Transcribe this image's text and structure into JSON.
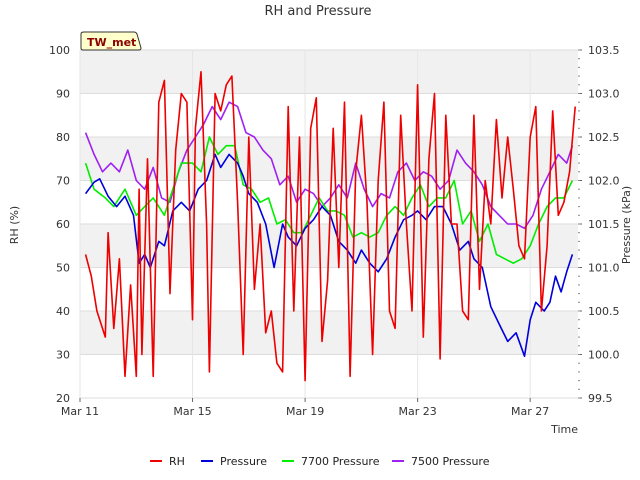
{
  "chart_data": {
    "type": "line",
    "title": "RH and Pressure",
    "badge": "TW_met",
    "xlabel": "Time",
    "ylabel_left": "RH (%)",
    "ylabel_right": "Pressure (kPa)",
    "x_tick_labels": [
      "Mar 11",
      "Mar 15",
      "Mar 19",
      "Mar 23",
      "Mar 27"
    ],
    "x_tick_days": [
      11,
      15,
      19,
      23,
      27
    ],
    "xlim_days": [
      11,
      28.7
    ],
    "ylim_left": [
      20,
      100
    ],
    "y_left_ticks": [
      20,
      30,
      40,
      50,
      60,
      70,
      80,
      90,
      100
    ],
    "ylim_right": [
      99.5,
      103.5
    ],
    "y_right_ticks": [
      99.5,
      100.0,
      100.5,
      101.0,
      101.5,
      102.0,
      102.5,
      103.0,
      103.5
    ],
    "grid": true,
    "legend_position": "bottom",
    "series": [
      {
        "name": "RH",
        "axis": "left",
        "color": "#ee0000",
        "x": [
          11.2,
          11.4,
          11.6,
          11.9,
          12.0,
          12.2,
          12.4,
          12.6,
          12.8,
          13.0,
          13.1,
          13.2,
          13.4,
          13.6,
          13.8,
          14.0,
          14.2,
          14.4,
          14.6,
          14.8,
          15.0,
          15.1,
          15.3,
          15.5,
          15.6,
          15.8,
          16.0,
          16.2,
          16.4,
          16.6,
          16.8,
          17.0,
          17.2,
          17.4,
          17.6,
          17.8,
          18.0,
          18.2,
          18.4,
          18.6,
          18.8,
          19.0,
          19.2,
          19.4,
          19.6,
          19.8,
          20.0,
          20.2,
          20.4,
          20.6,
          20.8,
          21.0,
          21.2,
          21.4,
          21.6,
          21.8,
          22.0,
          22.2,
          22.4,
          22.6,
          22.8,
          23.0,
          23.2,
          23.4,
          23.6,
          23.8,
          24.0,
          24.2,
          24.4,
          24.6,
          24.8,
          25.0,
          25.2,
          25.4,
          25.6,
          25.8,
          26.0,
          26.2,
          26.4,
          26.6,
          26.8,
          27.0,
          27.2,
          27.4,
          27.6,
          27.8,
          28.0,
          28.2,
          28.4,
          28.6
        ],
        "y": [
          53,
          48,
          40,
          34,
          58,
          36,
          52,
          25,
          46,
          25,
          68,
          30,
          75,
          25,
          88,
          93,
          44,
          77,
          90,
          88,
          38,
          82,
          95,
          60,
          26,
          90,
          86,
          92,
          94,
          65,
          30,
          80,
          45,
          60,
          35,
          40,
          28,
          26,
          87,
          40,
          80,
          24,
          82,
          89,
          33,
          47,
          82,
          50,
          88,
          25,
          72,
          85,
          65,
          30,
          70,
          88,
          40,
          36,
          85,
          60,
          40,
          92,
          34,
          75,
          90,
          29,
          85,
          60,
          60,
          40,
          38,
          85,
          45,
          70,
          60,
          84,
          66,
          80,
          68,
          55,
          52,
          80,
          87,
          40,
          55,
          86,
          62,
          65,
          72,
          87
        ]
      },
      {
        "name": "Pressure",
        "axis": "right",
        "color": "#0000dd",
        "x": [
          11.2,
          11.5,
          11.7,
          12.0,
          12.3,
          12.6,
          12.9,
          13.1,
          13.3,
          13.5,
          13.8,
          14.0,
          14.3,
          14.6,
          14.9,
          15.2,
          15.5,
          15.8,
          16.0,
          16.3,
          16.6,
          16.8,
          17.0,
          17.3,
          17.6,
          17.9,
          18.2,
          18.4,
          18.7,
          19.0,
          19.3,
          19.6,
          19.9,
          20.2,
          20.5,
          20.8,
          21.0,
          21.3,
          21.6,
          21.9,
          22.2,
          22.5,
          22.8,
          23.0,
          23.3,
          23.6,
          23.9,
          24.2,
          24.5,
          24.8,
          25.0,
          25.3,
          25.6,
          25.9,
          26.2,
          26.5,
          26.8,
          27.0,
          27.2,
          27.5,
          27.7,
          27.9,
          28.1,
          28.3,
          28.5
        ],
        "y": [
          101.85,
          101.98,
          102.02,
          101.82,
          101.7,
          101.82,
          101.6,
          101.05,
          101.15,
          101.0,
          101.3,
          101.25,
          101.65,
          101.75,
          101.65,
          101.9,
          102.0,
          102.3,
          102.15,
          102.3,
          102.2,
          102.05,
          101.85,
          101.75,
          101.5,
          101.0,
          101.5,
          101.35,
          101.25,
          101.45,
          101.55,
          101.7,
          101.6,
          101.3,
          101.2,
          101.05,
          101.2,
          101.05,
          100.95,
          101.1,
          101.35,
          101.55,
          101.6,
          101.65,
          101.55,
          101.7,
          101.7,
          101.5,
          101.2,
          101.3,
          101.1,
          101.0,
          100.55,
          100.35,
          100.15,
          100.25,
          99.98,
          100.4,
          100.6,
          100.5,
          100.6,
          100.9,
          100.72,
          100.95,
          101.15
        ]
      },
      {
        "name": "7700 Pressure",
        "axis": "right",
        "color": "#00ee00",
        "x": [
          11.2,
          11.5,
          11.9,
          12.2,
          12.6,
          13.0,
          13.3,
          13.6,
          14.0,
          14.3,
          14.6,
          15.0,
          15.3,
          15.6,
          15.9,
          16.2,
          16.5,
          16.8,
          17.1,
          17.4,
          17.7,
          18.0,
          18.3,
          18.6,
          18.9,
          19.2,
          19.5,
          19.8,
          20.1,
          20.4,
          20.7,
          21.0,
          21.3,
          21.6,
          21.9,
          22.2,
          22.5,
          22.8,
          23.1,
          23.4,
          23.7,
          24.0,
          24.3,
          24.6,
          24.9,
          25.2,
          25.5,
          25.8,
          26.1,
          26.4,
          26.7,
          27.0,
          27.3,
          27.6,
          27.9,
          28.2,
          28.5
        ],
        "y": [
          102.2,
          101.9,
          101.8,
          101.7,
          101.9,
          101.6,
          101.7,
          101.8,
          101.6,
          101.9,
          102.2,
          102.2,
          102.1,
          102.5,
          102.3,
          102.4,
          102.4,
          101.95,
          101.9,
          101.75,
          101.8,
          101.5,
          101.55,
          101.4,
          101.4,
          101.6,
          101.8,
          101.65,
          101.65,
          101.6,
          101.35,
          101.4,
          101.35,
          101.4,
          101.6,
          101.7,
          101.6,
          101.8,
          101.95,
          101.7,
          101.8,
          101.8,
          102.0,
          101.5,
          101.65,
          101.3,
          101.5,
          101.15,
          101.1,
          101.05,
          101.1,
          101.25,
          101.5,
          101.7,
          101.8,
          101.8,
          102.0
        ]
      },
      {
        "name": "7500 Pressure",
        "axis": "right",
        "color": "#a020f0",
        "x": [
          11.2,
          11.5,
          11.8,
          12.1,
          12.4,
          12.7,
          13.0,
          13.3,
          13.6,
          13.9,
          14.2,
          14.5,
          14.8,
          15.1,
          15.4,
          15.7,
          16.0,
          16.3,
          16.6,
          16.9,
          17.2,
          17.5,
          17.8,
          18.1,
          18.4,
          18.7,
          19.0,
          19.3,
          19.6,
          19.9,
          20.2,
          20.5,
          20.8,
          21.1,
          21.4,
          21.7,
          22.0,
          22.3,
          22.6,
          22.9,
          23.2,
          23.5,
          23.8,
          24.1,
          24.4,
          24.7,
          25.0,
          25.3,
          25.6,
          25.9,
          26.2,
          26.5,
          26.8,
          27.1,
          27.4,
          27.7,
          28.0,
          28.3,
          28.5
        ],
        "y": [
          102.55,
          102.3,
          102.1,
          102.2,
          102.1,
          102.35,
          102.0,
          101.9,
          102.15,
          101.8,
          101.75,
          102.1,
          102.35,
          102.5,
          102.65,
          102.85,
          102.7,
          102.9,
          102.85,
          102.55,
          102.5,
          102.35,
          102.25,
          101.95,
          102.05,
          101.75,
          101.9,
          101.85,
          101.7,
          101.8,
          101.95,
          101.8,
          102.2,
          101.9,
          101.7,
          101.85,
          101.8,
          102.1,
          102.2,
          102.0,
          102.1,
          102.05,
          101.9,
          102.0,
          102.35,
          102.2,
          102.1,
          101.95,
          101.7,
          101.6,
          101.5,
          101.5,
          101.45,
          101.6,
          101.9,
          102.1,
          102.3,
          102.2,
          102.4
        ]
      }
    ]
  }
}
